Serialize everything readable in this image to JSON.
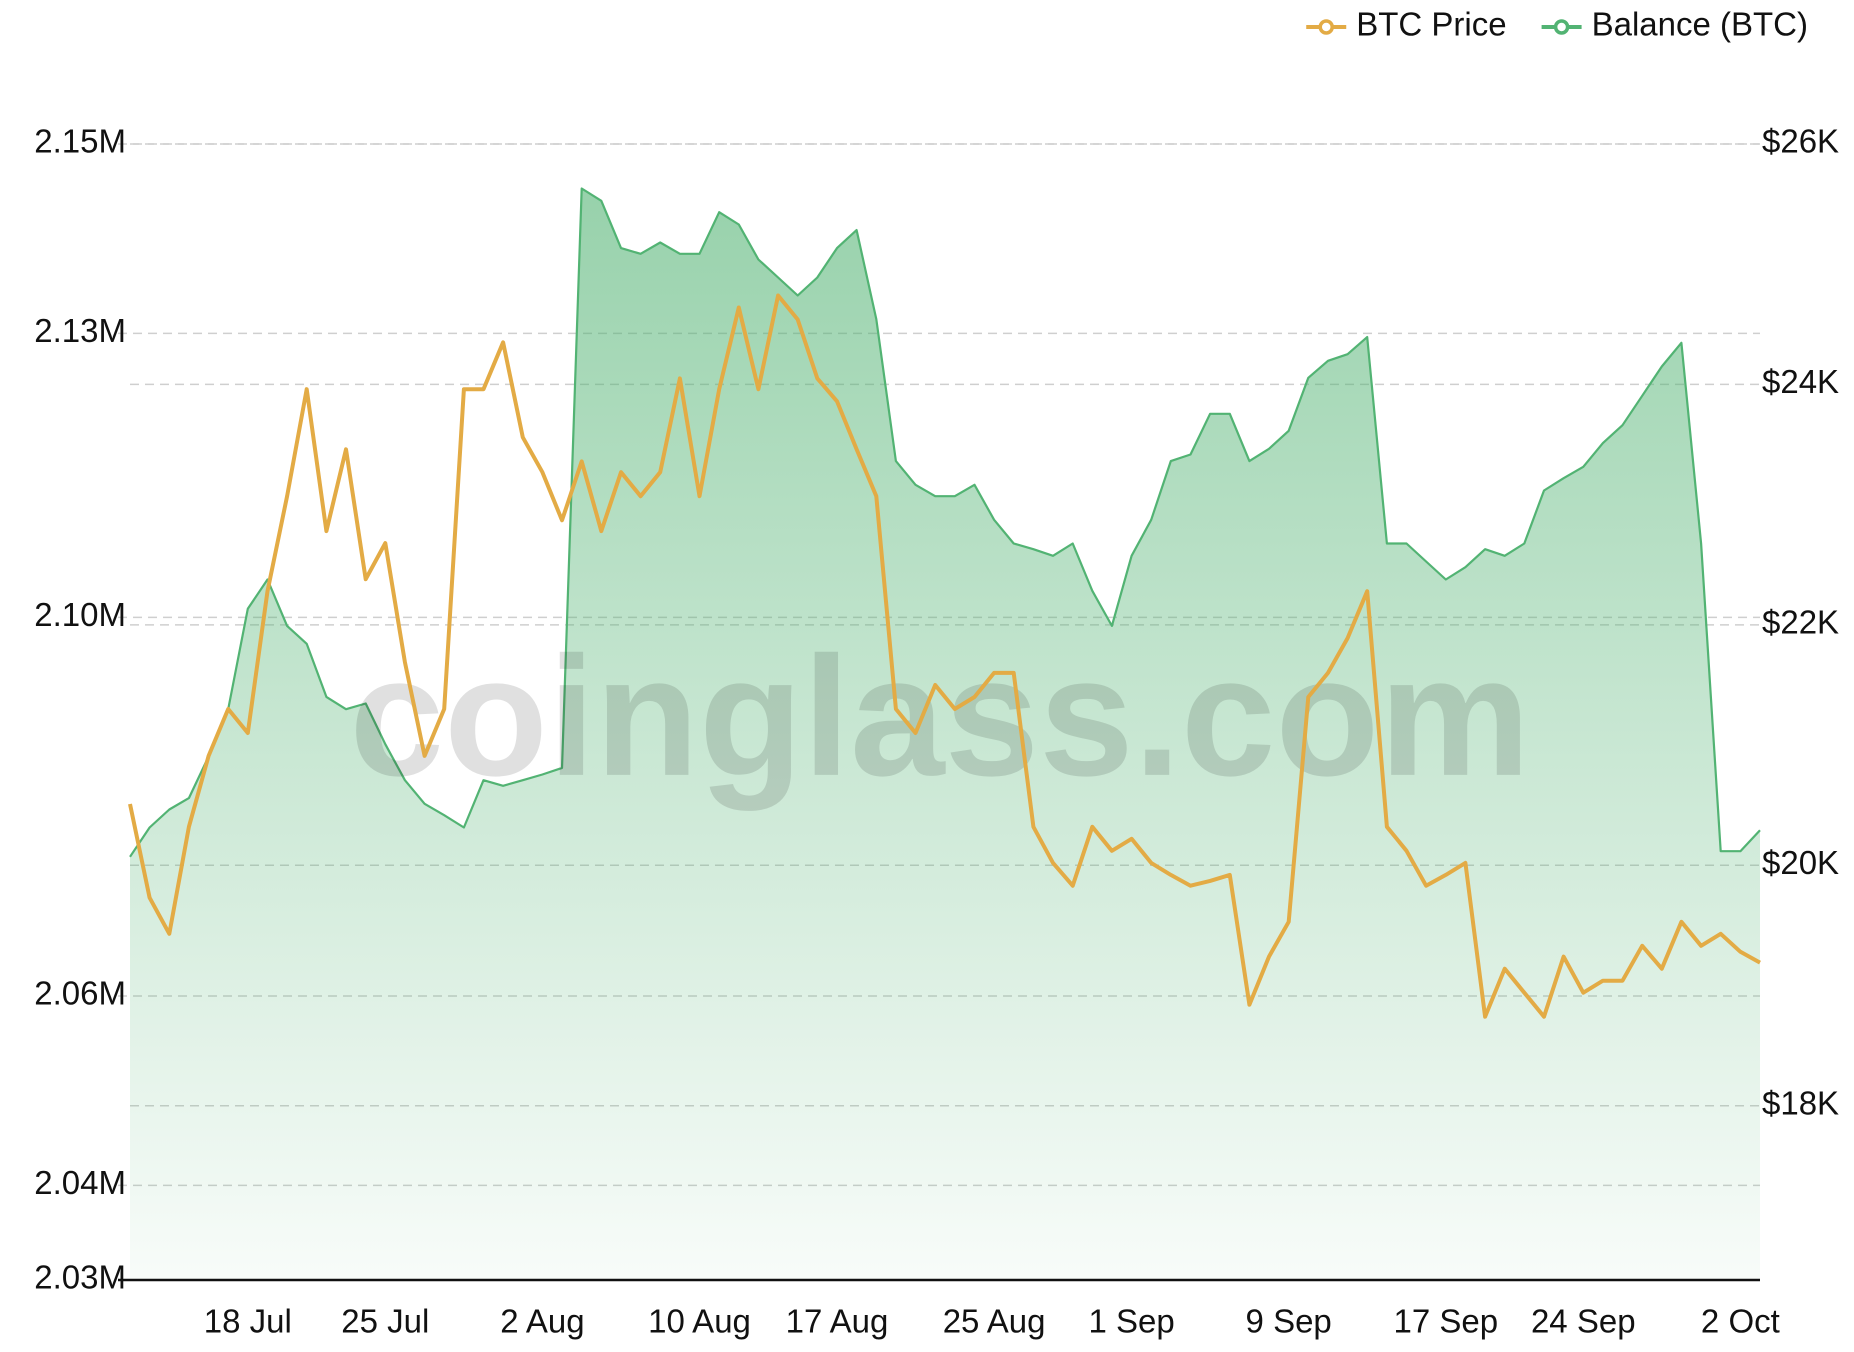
{
  "chart_data": {
    "type": "line",
    "watermark": "coinglass.com",
    "x": [
      "12 Jul",
      "13 Jul",
      "14 Jul",
      "15 Jul",
      "16 Jul",
      "17 Jul",
      "18 Jul",
      "19 Jul",
      "20 Jul",
      "21 Jul",
      "22 Jul",
      "23 Jul",
      "24 Jul",
      "25 Jul",
      "26 Jul",
      "27 Jul",
      "28 Jul",
      "29 Jul",
      "30 Jul",
      "31 Jul",
      "1 Aug",
      "2 Aug",
      "3 Aug",
      "4 Aug",
      "5 Aug",
      "6 Aug",
      "7 Aug",
      "8 Aug",
      "9 Aug",
      "10 Aug",
      "11 Aug",
      "12 Aug",
      "13 Aug",
      "14 Aug",
      "15 Aug",
      "16 Aug",
      "17 Aug",
      "18 Aug",
      "19 Aug",
      "20 Aug",
      "21 Aug",
      "22 Aug",
      "23 Aug",
      "24 Aug",
      "25 Aug",
      "26 Aug",
      "27 Aug",
      "28 Aug",
      "29 Aug",
      "30 Aug",
      "31 Aug",
      "1 Sep",
      "2 Sep",
      "3 Sep",
      "4 Sep",
      "5 Sep",
      "6 Sep",
      "7 Sep",
      "8 Sep",
      "9 Sep",
      "10 Sep",
      "11 Sep",
      "12 Sep",
      "13 Sep",
      "14 Sep",
      "15 Sep",
      "16 Sep",
      "17 Sep",
      "18 Sep",
      "19 Sep",
      "20 Sep",
      "21 Sep",
      "22 Sep",
      "23 Sep",
      "24 Sep",
      "25 Sep",
      "26 Sep",
      "27 Sep",
      "28 Sep",
      "29 Sep",
      "30 Sep",
      "1 Oct",
      "2 Oct",
      "3 Oct"
    ],
    "xticks": [
      "18 Jul",
      "25 Jul",
      "2 Aug",
      "10 Aug",
      "17 Aug",
      "25 Aug",
      "1 Sep",
      "9 Sep",
      "17 Sep",
      "24 Sep",
      "2 Oct"
    ],
    "series": [
      {
        "name": "BTC Price",
        "color": "#e3ab45",
        "axis": "y2",
        "values": [
          20510,
          19730,
          19430,
          20320,
          20910,
          21300,
          21100,
          22280,
          23070,
          23960,
          22780,
          23460,
          22380,
          22680,
          21690,
          20910,
          21300,
          23960,
          23960,
          24350,
          23560,
          23270,
          22870,
          23360,
          22780,
          23270,
          23070,
          23270,
          24050,
          23070,
          23960,
          24640,
          23960,
          24740,
          24540,
          24050,
          23860,
          23460,
          23070,
          21300,
          21100,
          21500,
          21300,
          21400,
          21600,
          21600,
          20320,
          20020,
          19830,
          20320,
          20120,
          20220,
          20020,
          19920,
          19830,
          19870,
          19920,
          18840,
          19240,
          19530,
          21400,
          21600,
          21890,
          22280,
          20320,
          20120,
          19830,
          19920,
          20020,
          18740,
          19140,
          18940,
          18740,
          19240,
          18940,
          19040,
          19040,
          19330,
          19140,
          19530,
          19330,
          19430,
          19280,
          19190
        ]
      },
      {
        "name": "Balance (BTC)",
        "color": "#52b373",
        "axis": "y",
        "values": [
          2074700,
          2077800,
          2079700,
          2080900,
          2085300,
          2090300,
          2100900,
          2104000,
          2099100,
          2097200,
          2091600,
          2090300,
          2090900,
          2086600,
          2082800,
          2080300,
          2079100,
          2077800,
          2082800,
          2082200,
          2082800,
          2083400,
          2084100,
          2145300,
          2144000,
          2139000,
          2138400,
          2139600,
          2138400,
          2138400,
          2142800,
          2141500,
          2137800,
          2135900,
          2134000,
          2135900,
          2139000,
          2140900,
          2131500,
          2116500,
          2114000,
          2112800,
          2112800,
          2114000,
          2110300,
          2107800,
          2107200,
          2106500,
          2107800,
          2102800,
          2099100,
          2106500,
          2110300,
          2116500,
          2117200,
          2121500,
          2121500,
          2116500,
          2117800,
          2119700,
          2125300,
          2127100,
          2127800,
          2129600,
          2107800,
          2107800,
          2105900,
          2104000,
          2105300,
          2107200,
          2106500,
          2107800,
          2113400,
          2114700,
          2115900,
          2118400,
          2120300,
          2123400,
          2126500,
          2129000,
          2107800,
          2075300,
          2075300,
          2077500
        ]
      }
    ],
    "ylim": [
      2030000,
      2150000
    ],
    "yticks": [
      {
        "value": 2030000,
        "label": "2.03M"
      },
      {
        "value": 2040000,
        "label": "2.04M"
      },
      {
        "value": 2060000,
        "label": "2.06M"
      },
      {
        "value": 2100000,
        "label": "2.10M"
      },
      {
        "value": 2130000,
        "label": "2.13M"
      },
      {
        "value": 2150000,
        "label": "2.15M"
      }
    ],
    "y2lim": [
      16550,
      26000
    ],
    "y2ticks": [
      {
        "value": 18000,
        "label": "$18K"
      },
      {
        "value": 20000,
        "label": "$20K"
      },
      {
        "value": 22000,
        "label": "$22K"
      },
      {
        "value": 24000,
        "label": "$24K"
      },
      {
        "value": 26000,
        "label": "$26K"
      }
    ],
    "grid": true,
    "legend": "top-right"
  }
}
